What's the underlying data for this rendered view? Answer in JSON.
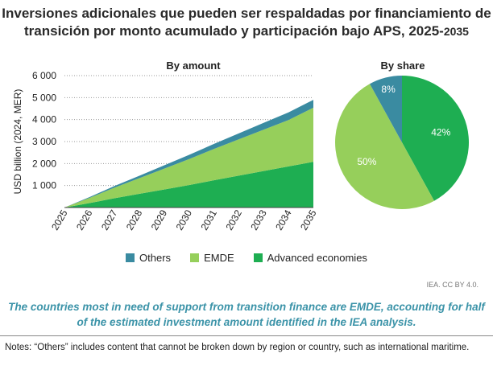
{
  "header": {
    "title_main": "Inversiones adicionales que pueden ser respaldadas por financiamiento de transición por monto acumulado y participación bajo APS, 2025-",
    "title_end": "2035"
  },
  "chart_data": [
    {
      "type": "area",
      "stacked": true,
      "title": "By amount",
      "ylabel": "USD billion (2024, MER)",
      "xlabel": "",
      "categories": [
        "2025",
        "2026",
        "2027",
        "2028",
        "2029",
        "2030",
        "2031",
        "2032",
        "2033",
        "2034",
        "2035"
      ],
      "yticks": [
        "1 000",
        "2 000",
        "3 000",
        "4 000",
        "5 000",
        "6 000"
      ],
      "ylim": [
        0,
        6000
      ],
      "grid": "horizontal-dotted",
      "series": [
        {
          "name": "Advanced economies",
          "color": "#1eae52",
          "values": [
            0,
            200,
            420,
            620,
            820,
            1020,
            1240,
            1450,
            1660,
            1870,
            2080
          ]
        },
        {
          "name": "EMDE",
          "color": "#96cf5b",
          "values": [
            0,
            235,
            480,
            710,
            945,
            1180,
            1420,
            1650,
            1880,
            2110,
            2460
          ]
        },
        {
          "name": "Others",
          "color": "#3a8ba1",
          "values": [
            0,
            35,
            75,
            110,
            150,
            190,
            230,
            270,
            310,
            345,
            360
          ]
        }
      ]
    },
    {
      "type": "pie",
      "title": "By share",
      "slices": [
        {
          "name": "Advanced economies",
          "value": 42,
          "label": "42%",
          "color": "#1eae52"
        },
        {
          "name": "EMDE",
          "value": 50,
          "label": "50%",
          "color": "#96cf5b"
        },
        {
          "name": "Others",
          "value": 8,
          "label": "8%",
          "color": "#3a8ba1"
        }
      ]
    }
  ],
  "legend": [
    {
      "label": "Others",
      "color": "#3a8ba1"
    },
    {
      "label": "EMDE",
      "color": "#96cf5b"
    },
    {
      "label": "Advanced economies",
      "color": "#1eae52"
    }
  ],
  "source": "IEA. CC BY 4.0.",
  "takeaway": "The countries most in need of support from transition finance are EMDE, accounting for half of the estimated investment amount identified in the IEA analysis.",
  "notes": "Notes: “Others” includes content that cannot be broken down by region or country, such as international maritime."
}
